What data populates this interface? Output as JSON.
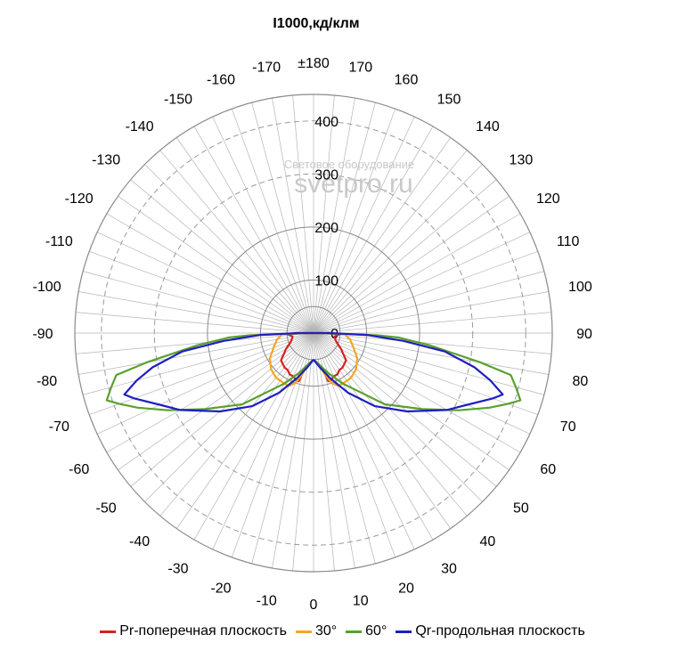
{
  "chart_data": {
    "type": "polar-line",
    "title": "I1000,кд/клм",
    "radial_max": 450,
    "radial_ticks": [
      0,
      100,
      200,
      300,
      400
    ],
    "angle_labels": [
      "0",
      "10",
      "20",
      "30",
      "40",
      "50",
      "60",
      "70",
      "80",
      "90",
      "100",
      "110",
      "120",
      "130",
      "140",
      "150",
      "160",
      "170",
      "±180",
      "-170",
      "-160",
      "-150",
      "-140",
      "-130",
      "-120",
      "-110",
      "-100",
      "-90",
      "-80",
      "-70",
      "-60",
      "-50",
      "-40",
      "-30",
      "-20",
      "-10"
    ],
    "watermark": [
      "Световое оборудование",
      "svetpro.ru"
    ],
    "series": [
      {
        "name": "Pr-поперечная плоскость",
        "color": "#d81f1f",
        "points": [
          [
            0,
            50
          ],
          [
            10,
            60
          ],
          [
            15,
            75
          ],
          [
            17,
            95
          ],
          [
            20,
            95
          ],
          [
            25,
            90
          ],
          [
            30,
            90
          ],
          [
            35,
            85
          ],
          [
            40,
            85
          ],
          [
            50,
            80
          ],
          [
            60,
            60
          ],
          [
            70,
            45
          ],
          [
            80,
            40
          ],
          [
            85,
            45
          ],
          [
            88,
            50
          ],
          [
            90,
            15
          ],
          [
            95,
            0
          ],
          [
            -95,
            0
          ],
          [
            -90,
            15
          ],
          [
            -88,
            50
          ],
          [
            -85,
            45
          ],
          [
            -80,
            40
          ],
          [
            -70,
            45
          ],
          [
            -60,
            60
          ],
          [
            -50,
            80
          ],
          [
            -40,
            85
          ],
          [
            -35,
            85
          ],
          [
            -30,
            90
          ],
          [
            -25,
            90
          ],
          [
            -20,
            95
          ],
          [
            -17,
            95
          ],
          [
            -15,
            75
          ],
          [
            -10,
            60
          ],
          [
            0,
            50
          ]
        ]
      },
      {
        "name": "30°",
        "color": "#f5a623",
        "points": [
          [
            0,
            50
          ],
          [
            10,
            60
          ],
          [
            15,
            80
          ],
          [
            20,
            100
          ],
          [
            25,
            110
          ],
          [
            30,
            110
          ],
          [
            40,
            110
          ],
          [
            50,
            105
          ],
          [
            60,
            95
          ],
          [
            70,
            80
          ],
          [
            80,
            70
          ],
          [
            85,
            62
          ],
          [
            88,
            60
          ],
          [
            90,
            20
          ],
          [
            95,
            0
          ],
          [
            -95,
            0
          ],
          [
            -90,
            20
          ],
          [
            -88,
            60
          ],
          [
            -85,
            62
          ],
          [
            -80,
            70
          ],
          [
            -70,
            80
          ],
          [
            -60,
            95
          ],
          [
            -50,
            105
          ],
          [
            -40,
            110
          ],
          [
            -30,
            110
          ],
          [
            -25,
            110
          ],
          [
            -20,
            100
          ],
          [
            -15,
            80
          ],
          [
            -10,
            60
          ],
          [
            0,
            50
          ]
        ]
      },
      {
        "name": "60°",
        "color": "#5aa02c",
        "points": [
          [
            0,
            50
          ],
          [
            10,
            60
          ],
          [
            20,
            80
          ],
          [
            30,
            110
          ],
          [
            45,
            190
          ],
          [
            55,
            250
          ],
          [
            62,
            310
          ],
          [
            67,
            360
          ],
          [
            70,
            390
          ],
          [
            72,
            410
          ],
          [
            75,
            395
          ],
          [
            78,
            380
          ],
          [
            80,
            320
          ],
          [
            84,
            220
          ],
          [
            87,
            160
          ],
          [
            88,
            120
          ],
          [
            90,
            20
          ],
          [
            95,
            0
          ],
          [
            -95,
            0
          ],
          [
            -90,
            20
          ],
          [
            -88,
            120
          ],
          [
            -87,
            160
          ],
          [
            -84,
            220
          ],
          [
            -80,
            320
          ],
          [
            -78,
            380
          ],
          [
            -75,
            395
          ],
          [
            -72,
            410
          ],
          [
            -70,
            390
          ],
          [
            -67,
            360
          ],
          [
            -62,
            310
          ],
          [
            -55,
            250
          ],
          [
            -45,
            190
          ],
          [
            -30,
            110
          ],
          [
            -20,
            80
          ],
          [
            -10,
            60
          ],
          [
            0,
            50
          ]
        ]
      },
      {
        "name": "Qr-продольная плоскость",
        "color": "#1f1fc0",
        "points": [
          [
            0,
            50
          ],
          [
            10,
            65
          ],
          [
            20,
            90
          ],
          [
            30,
            130
          ],
          [
            40,
            180
          ],
          [
            50,
            230
          ],
          [
            60,
            290
          ],
          [
            65,
            320
          ],
          [
            70,
            360
          ],
          [
            72,
            375
          ],
          [
            75,
            345
          ],
          [
            78,
            310
          ],
          [
            82,
            250
          ],
          [
            85,
            170
          ],
          [
            88,
            100
          ],
          [
            90,
            30
          ],
          [
            95,
            0
          ],
          [
            -95,
            0
          ],
          [
            -90,
            30
          ],
          [
            -88,
            100
          ],
          [
            -85,
            170
          ],
          [
            -82,
            250
          ],
          [
            -78,
            310
          ],
          [
            -75,
            345
          ],
          [
            -72,
            375
          ],
          [
            -70,
            360
          ],
          [
            -65,
            320
          ],
          [
            -60,
            290
          ],
          [
            -50,
            230
          ],
          [
            -40,
            180
          ],
          [
            -30,
            130
          ],
          [
            -20,
            90
          ],
          [
            -10,
            65
          ],
          [
            0,
            50
          ]
        ]
      }
    ]
  }
}
